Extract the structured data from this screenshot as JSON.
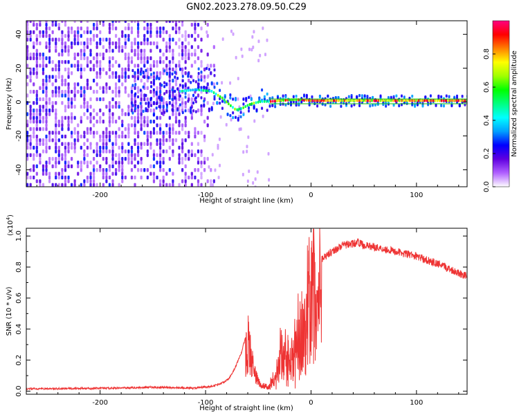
{
  "figure_title": "GN02.2023.278.09.50.C29",
  "chart_data": [
    {
      "type": "heatmap",
      "title": "GN02.2023.278.09.50.C29",
      "xlabel": "Height of straight line (km)",
      "ylabel": "Frequency (Hz)",
      "xlim": [
        -270,
        148
      ],
      "ylim": [
        -50,
        48
      ],
      "x_ticks": [
        -200,
        -100,
        0,
        100
      ],
      "x_tick_labels": [
        "-200",
        "-100",
        "0",
        "100"
      ],
      "y_ticks": [
        -40,
        -20,
        0,
        20,
        40
      ],
      "y_tick_labels": [
        "-40",
        "-20",
        "0",
        "20",
        "40"
      ],
      "trace_centerline": {
        "x": [
          -125,
          -110,
          -95,
          -85,
          -78,
          -72,
          -66,
          -60,
          -55,
          -48,
          -40,
          -30,
          -20,
          -10,
          0,
          20,
          50,
          80,
          110,
          148
        ],
        "y": [
          6,
          7,
          6,
          2,
          -2,
          -5,
          -4,
          -2,
          -1,
          0,
          0,
          0.5,
          1,
          1,
          0.5,
          0.5,
          0.5,
          0.5,
          0.5,
          0.5
        ]
      },
      "colorbar": {
        "label": "Normalized spectral amplitude",
        "range": [
          0.0,
          1.0
        ],
        "ticks": [
          0.0,
          0.2,
          0.4,
          0.6,
          0.8
        ],
        "tick_labels": [
          "0.0",
          "0.2",
          "0.4",
          "0.6",
          "0.8"
        ],
        "colors": [
          "#ffffff",
          "#b060ff",
          "#6000e0",
          "#0000ff",
          "#00a0ff",
          "#00ffff",
          "#00ff80",
          "#00ff00",
          "#a0ff00",
          "#ffff00",
          "#ff8000",
          "#ff0000",
          "#ff0080"
        ]
      }
    },
    {
      "type": "line",
      "xlabel": "Height of straight line (km)",
      "ylabel": "SNR (10 * v/v)",
      "y_scale_label": "(x10",
      "y_scale_exponent": "4",
      "y_scale_suffix": ")",
      "xlim": [
        -270,
        148
      ],
      "ylim": [
        -0.02,
        1.05
      ],
      "x_ticks": [
        -200,
        -100,
        0,
        100
      ],
      "x_tick_labels": [
        "-200",
        "-100",
        "0",
        "100"
      ],
      "y_ticks": [
        0.0,
        0.2,
        0.4,
        0.6,
        0.8,
        1.0
      ],
      "y_tick_labels": [
        "0.0",
        "0.2",
        "0.4",
        "0.6",
        "0.8",
        "1.0"
      ],
      "series": [
        {
          "name": "SNR",
          "color": "#ee3333",
          "envelope": {
            "x": [
              -270,
              -200,
              -150,
              -110,
              -95,
              -85,
              -78,
              -72,
              -66,
              -62,
              -59,
              -57,
              -54,
              -50,
              -46,
              -40,
              -35,
              -30,
              -26,
              -22,
              -18,
              -12,
              -5,
              0,
              5,
              10,
              15,
              20,
              25,
              30,
              40,
              45,
              50,
              60,
              80,
              100,
              120,
              148
            ],
            "y": [
              0.015,
              0.018,
              0.025,
              0.02,
              0.03,
              0.05,
              0.08,
              0.15,
              0.25,
              0.35,
              0.4,
              0.32,
              0.16,
              0.07,
              0.05,
              0.03,
              0.1,
              0.25,
              0.3,
              0.22,
              0.25,
              0.4,
              0.55,
              0.7,
              0.8,
              0.85,
              0.88,
              0.9,
              0.92,
              0.94,
              0.95,
              0.96,
              0.94,
              0.93,
              0.9,
              0.87,
              0.82,
              0.74
            ]
          }
        }
      ]
    }
  ]
}
